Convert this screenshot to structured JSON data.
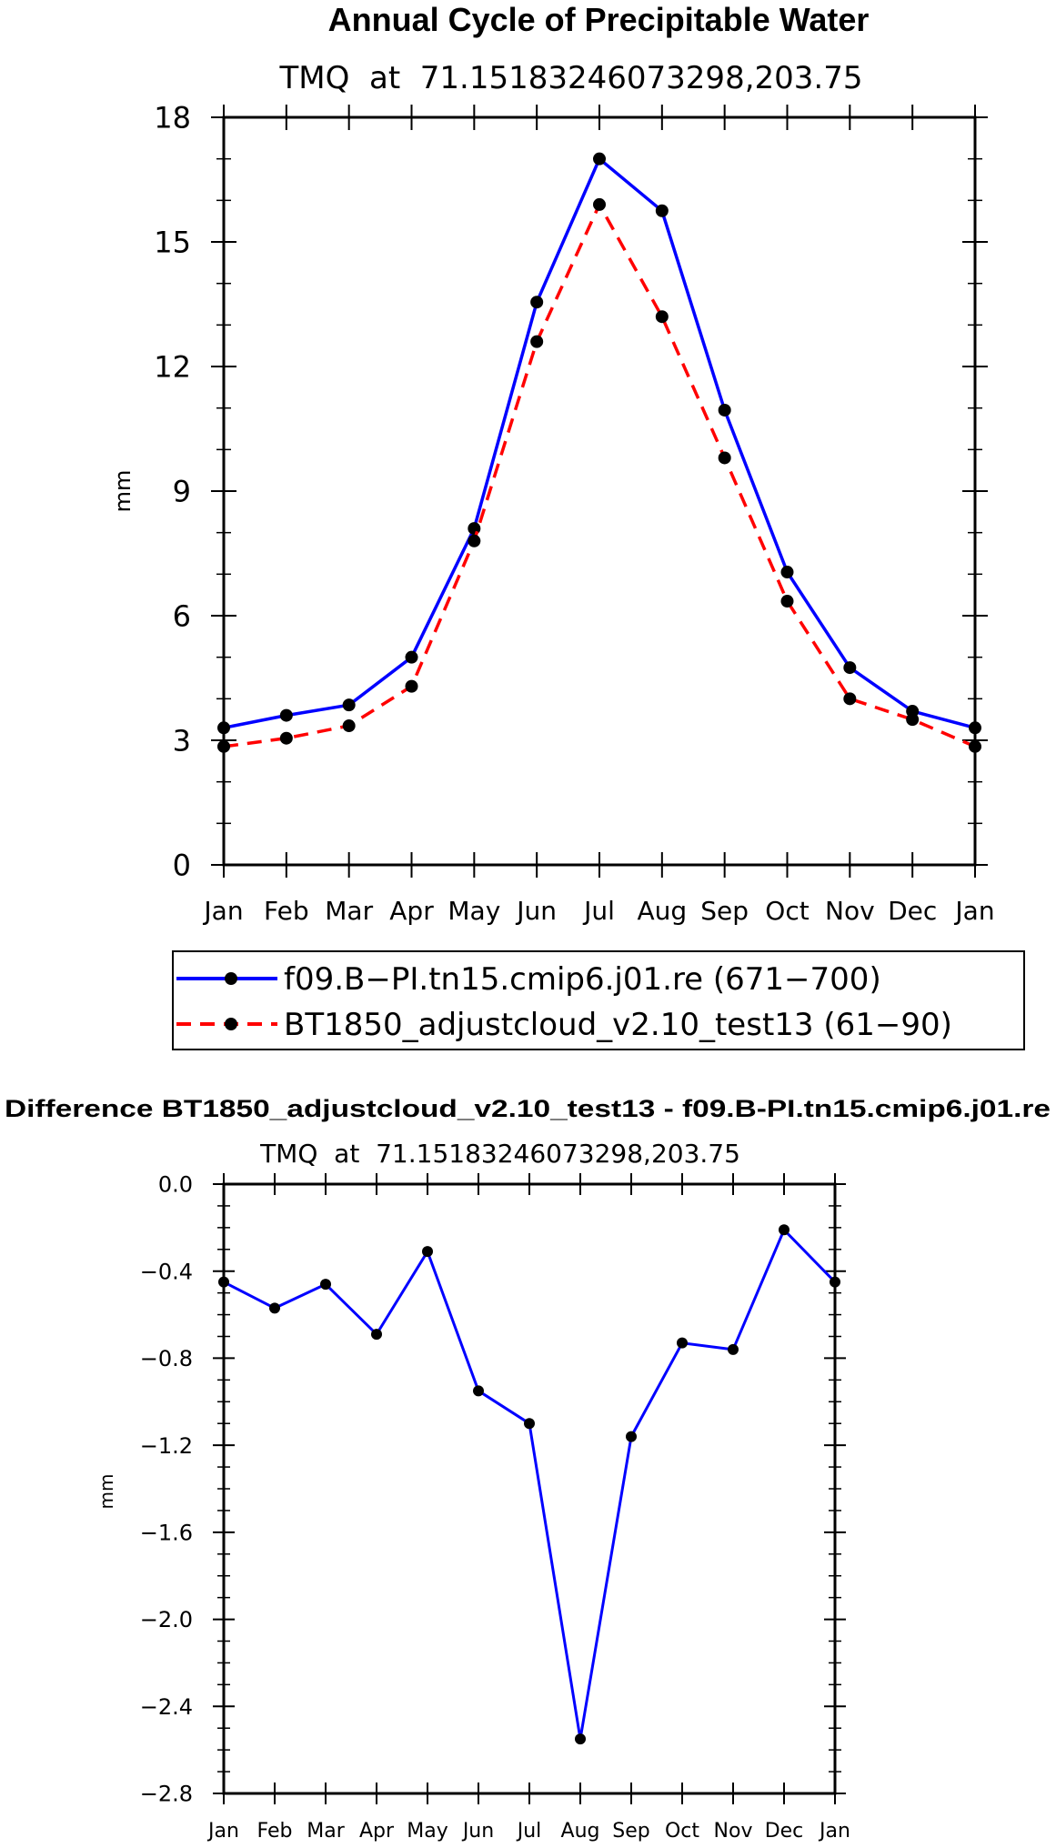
{
  "chart_data": [
    {
      "type": "line",
      "title": "Annual Cycle of Precipitable Water",
      "subtitle": "TMQ  at  71.15183246073298,203.75",
      "xlabel": "",
      "ylabel": "mm",
      "categories": [
        "Jan",
        "Feb",
        "Mar",
        "Apr",
        "May",
        "Jun",
        "Jul",
        "Aug",
        "Sep",
        "Oct",
        "Nov",
        "Dec",
        "Jan"
      ],
      "ylim": [
        0,
        18
      ],
      "yticks": [
        "0",
        "3",
        "6",
        "9",
        "12",
        "15",
        "18"
      ],
      "series": [
        {
          "name": "f09.B−PI.tn15.cmip6.j01.re (671−700)",
          "color": "#0000ff",
          "style": "solid",
          "values": [
            3.3,
            3.6,
            3.85,
            5.0,
            8.1,
            13.55,
            17.0,
            15.75,
            10.95,
            7.05,
            4.75,
            3.7,
            3.3
          ]
        },
        {
          "name": "BT1850_adjustcloud_v2.10_test13 (61−90)",
          "color": "#ff0000",
          "style": "dashed",
          "values": [
            2.85,
            3.05,
            3.35,
            4.3,
            7.8,
            12.6,
            15.9,
            13.2,
            9.8,
            6.35,
            4.0,
            3.5,
            2.85
          ]
        }
      ],
      "legend_position": "below"
    },
    {
      "type": "line",
      "title": "Difference BT1850_adjustcloud_v2.10_test13 - f09.B-PI.tn15.cmip6.j01.re",
      "subtitle": "TMQ  at  71.15183246073298,203.75",
      "xlabel": "",
      "ylabel": "mm",
      "categories": [
        "Jan",
        "Feb",
        "Mar",
        "Apr",
        "May",
        "Jun",
        "Jul",
        "Aug",
        "Sep",
        "Oct",
        "Nov",
        "Dec",
        "Jan"
      ],
      "ylim": [
        -2.8,
        0.0
      ],
      "yticks": [
        "−2.8",
        "−2.4",
        "−2.0",
        "−1.6",
        "−1.2",
        "−0.8",
        "−0.4",
        "0.0"
      ],
      "series": [
        {
          "name": "Difference",
          "color": "#0000ff",
          "style": "solid",
          "values": [
            -0.45,
            -0.57,
            -0.46,
            -0.69,
            -0.31,
            -0.95,
            -1.1,
            -2.55,
            -1.16,
            -0.73,
            -0.76,
            -0.21,
            -0.45
          ]
        }
      ]
    }
  ]
}
